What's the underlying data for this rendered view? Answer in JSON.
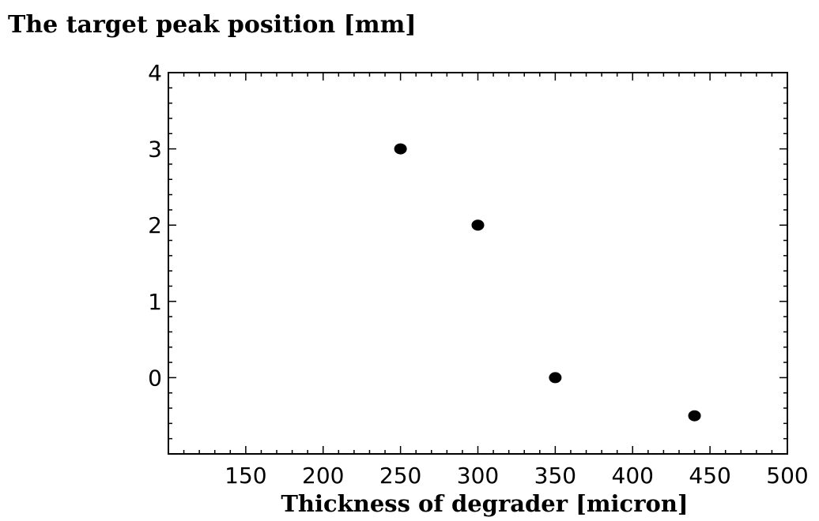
{
  "chart_data": {
    "type": "scatter",
    "title": "The target peak position [mm]",
    "xlabel": "Thickness of degrader [micron]",
    "ylabel": "",
    "xlim": [
      100,
      500
    ],
    "ylim": [
      -1,
      4
    ],
    "xticks": [
      150,
      200,
      250,
      300,
      350,
      400,
      450,
      500
    ],
    "yticks": [
      0,
      1,
      2,
      3,
      4
    ],
    "grid": false,
    "series": [
      {
        "x": [
          250,
          300,
          350,
          440
        ],
        "y": [
          3,
          2,
          0,
          -0.5
        ]
      }
    ],
    "marker_color": "#000000"
  }
}
